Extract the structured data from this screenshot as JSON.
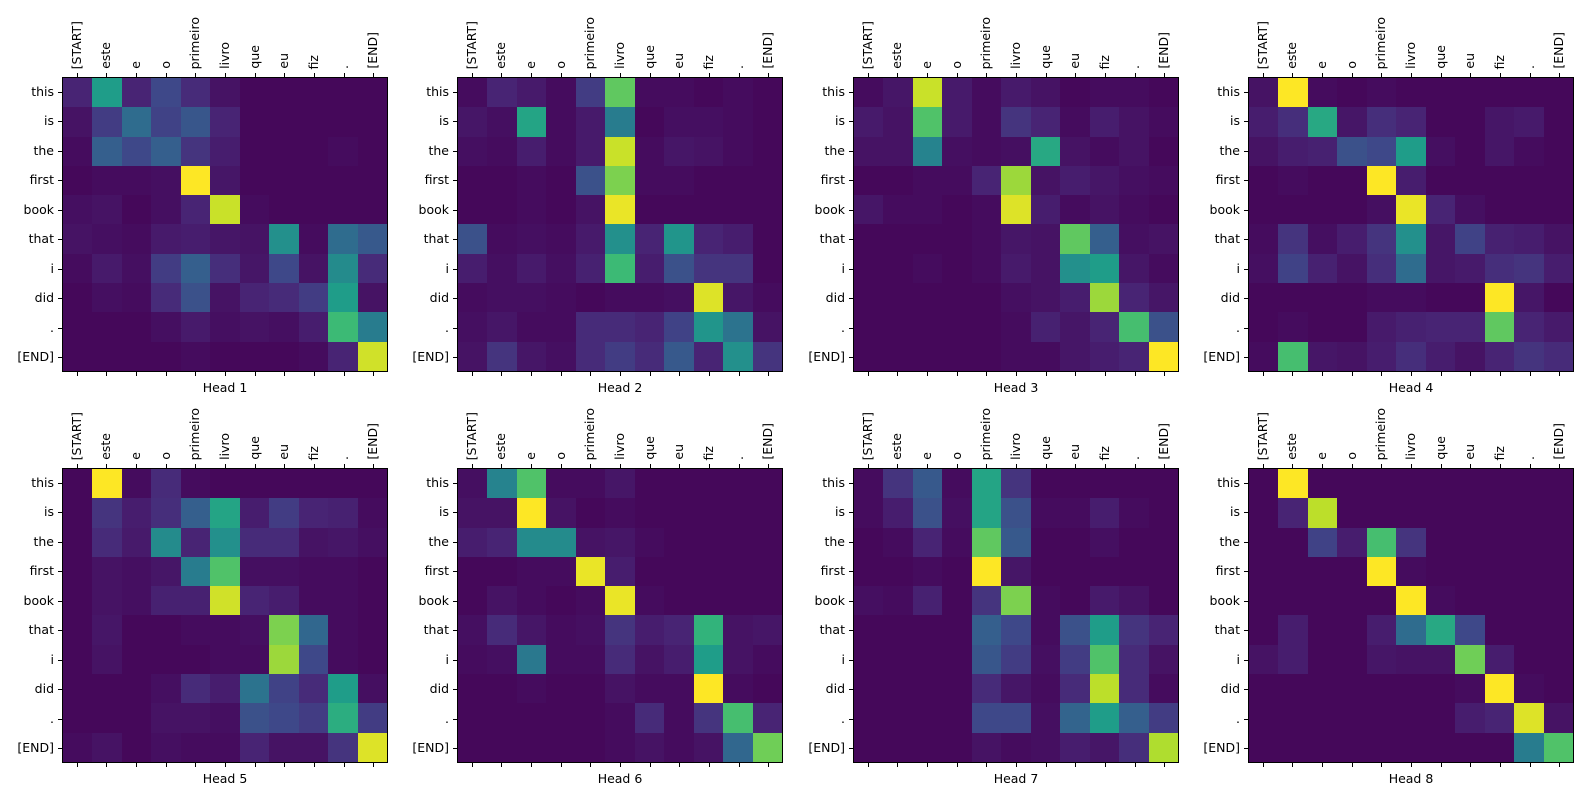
{
  "figure": {
    "background_color": "#ffffff",
    "text_color": "#000000"
  },
  "chart_data": {
    "type": "heatmap",
    "description": "Grid of 8 attention-head weight matrices (decoder tokens vs source tokens)",
    "colormap": "viridis",
    "colormap_stops": [
      "#440154",
      "#482878",
      "#3e4989",
      "#31688e",
      "#26828e",
      "#1f9e89",
      "#35b779",
      "#6ece58",
      "#b5de2b",
      "#fde725"
    ],
    "value_range": [
      0,
      1
    ],
    "grid": "off",
    "x_labels": [
      "[START]",
      "este",
      "e",
      "o",
      "primeiro",
      "livro",
      "que",
      "eu",
      "fiz",
      ".",
      "[END]"
    ],
    "y_labels": [
      "this",
      "is",
      "the",
      "first",
      "book",
      "that",
      "i",
      "did",
      ".",
      "[END]"
    ],
    "heads": [
      {
        "title": "Head 1",
        "values": [
          [
            0.1,
            0.55,
            0.1,
            0.22,
            0.12,
            0.05,
            0.02,
            0.02,
            0.02,
            0.02,
            0.02
          ],
          [
            0.05,
            0.18,
            0.35,
            0.2,
            0.27,
            0.1,
            0.02,
            0.02,
            0.02,
            0.02,
            0.02
          ],
          [
            0.03,
            0.3,
            0.22,
            0.3,
            0.15,
            0.08,
            0.02,
            0.02,
            0.02,
            0.03,
            0.02
          ],
          [
            0.02,
            0.03,
            0.03,
            0.04,
            1.0,
            0.06,
            0.02,
            0.02,
            0.02,
            0.02,
            0.02
          ],
          [
            0.04,
            0.05,
            0.02,
            0.04,
            0.1,
            0.92,
            0.03,
            0.02,
            0.02,
            0.02,
            0.02
          ],
          [
            0.05,
            0.04,
            0.03,
            0.07,
            0.08,
            0.06,
            0.05,
            0.5,
            0.03,
            0.35,
            0.28
          ],
          [
            0.03,
            0.07,
            0.04,
            0.18,
            0.3,
            0.13,
            0.06,
            0.22,
            0.05,
            0.48,
            0.12
          ],
          [
            0.02,
            0.04,
            0.03,
            0.12,
            0.25,
            0.05,
            0.1,
            0.12,
            0.18,
            0.55,
            0.05
          ],
          [
            0.02,
            0.02,
            0.02,
            0.04,
            0.07,
            0.04,
            0.05,
            0.04,
            0.08,
            0.68,
            0.42
          ],
          [
            0.02,
            0.02,
            0.02,
            0.02,
            0.03,
            0.02,
            0.02,
            0.02,
            0.03,
            0.1,
            0.93
          ]
        ]
      },
      {
        "title": "Head 2",
        "values": [
          [
            0.03,
            0.1,
            0.07,
            0.03,
            0.18,
            0.75,
            0.03,
            0.03,
            0.02,
            0.03,
            0.02
          ],
          [
            0.06,
            0.04,
            0.58,
            0.03,
            0.07,
            0.42,
            0.02,
            0.04,
            0.04,
            0.03,
            0.02
          ],
          [
            0.04,
            0.03,
            0.08,
            0.03,
            0.07,
            0.92,
            0.03,
            0.06,
            0.05,
            0.03,
            0.02
          ],
          [
            0.02,
            0.02,
            0.03,
            0.02,
            0.25,
            0.8,
            0.03,
            0.03,
            0.02,
            0.02,
            0.02
          ],
          [
            0.02,
            0.02,
            0.03,
            0.02,
            0.05,
            0.97,
            0.02,
            0.02,
            0.02,
            0.02,
            0.02
          ],
          [
            0.25,
            0.03,
            0.04,
            0.03,
            0.07,
            0.5,
            0.1,
            0.52,
            0.1,
            0.08,
            0.02
          ],
          [
            0.08,
            0.04,
            0.07,
            0.04,
            0.09,
            0.68,
            0.08,
            0.25,
            0.15,
            0.15,
            0.02
          ],
          [
            0.03,
            0.04,
            0.04,
            0.03,
            0.02,
            0.03,
            0.03,
            0.04,
            0.95,
            0.06,
            0.03
          ],
          [
            0.04,
            0.06,
            0.03,
            0.03,
            0.12,
            0.12,
            0.1,
            0.2,
            0.52,
            0.38,
            0.05
          ],
          [
            0.05,
            0.15,
            0.06,
            0.04,
            0.12,
            0.18,
            0.12,
            0.28,
            0.1,
            0.5,
            0.15
          ]
        ]
      },
      {
        "title": "Head 3",
        "values": [
          [
            0.03,
            0.06,
            0.92,
            0.07,
            0.03,
            0.07,
            0.05,
            0.02,
            0.03,
            0.03,
            0.02
          ],
          [
            0.07,
            0.05,
            0.72,
            0.07,
            0.03,
            0.15,
            0.1,
            0.03,
            0.08,
            0.05,
            0.03
          ],
          [
            0.05,
            0.05,
            0.45,
            0.04,
            0.03,
            0.04,
            0.6,
            0.05,
            0.03,
            0.05,
            0.02
          ],
          [
            0.02,
            0.02,
            0.03,
            0.03,
            0.1,
            0.85,
            0.05,
            0.08,
            0.06,
            0.04,
            0.03
          ],
          [
            0.06,
            0.03,
            0.03,
            0.02,
            0.03,
            0.95,
            0.08,
            0.03,
            0.05,
            0.03,
            0.02
          ],
          [
            0.02,
            0.02,
            0.02,
            0.02,
            0.03,
            0.06,
            0.05,
            0.75,
            0.3,
            0.04,
            0.05
          ],
          [
            0.02,
            0.02,
            0.03,
            0.02,
            0.03,
            0.07,
            0.05,
            0.5,
            0.55,
            0.06,
            0.03
          ],
          [
            0.02,
            0.02,
            0.02,
            0.02,
            0.02,
            0.04,
            0.05,
            0.08,
            0.85,
            0.1,
            0.06
          ],
          [
            0.02,
            0.02,
            0.02,
            0.02,
            0.02,
            0.03,
            0.09,
            0.06,
            0.1,
            0.7,
            0.25
          ],
          [
            0.02,
            0.02,
            0.02,
            0.02,
            0.02,
            0.03,
            0.03,
            0.06,
            0.08,
            0.1,
            1.0
          ]
        ]
      },
      {
        "title": "Head 4",
        "values": [
          [
            0.05,
            1.0,
            0.03,
            0.02,
            0.03,
            0.02,
            0.02,
            0.02,
            0.02,
            0.02,
            0.02
          ],
          [
            0.08,
            0.13,
            0.6,
            0.06,
            0.13,
            0.1,
            0.02,
            0.02,
            0.06,
            0.07,
            0.02
          ],
          [
            0.05,
            0.08,
            0.09,
            0.25,
            0.22,
            0.55,
            0.04,
            0.02,
            0.06,
            0.03,
            0.02
          ],
          [
            0.02,
            0.03,
            0.02,
            0.02,
            1.0,
            0.08,
            0.02,
            0.02,
            0.02,
            0.02,
            0.02
          ],
          [
            0.02,
            0.02,
            0.02,
            0.02,
            0.04,
            0.97,
            0.1,
            0.04,
            0.02,
            0.02,
            0.02
          ],
          [
            0.03,
            0.15,
            0.04,
            0.08,
            0.15,
            0.5,
            0.06,
            0.2,
            0.09,
            0.08,
            0.05
          ],
          [
            0.04,
            0.2,
            0.09,
            0.05,
            0.13,
            0.35,
            0.06,
            0.07,
            0.13,
            0.15,
            0.08
          ],
          [
            0.02,
            0.02,
            0.02,
            0.02,
            0.03,
            0.03,
            0.02,
            0.02,
            1.0,
            0.06,
            0.02
          ],
          [
            0.02,
            0.03,
            0.02,
            0.02,
            0.07,
            0.09,
            0.1,
            0.1,
            0.75,
            0.1,
            0.07
          ],
          [
            0.03,
            0.7,
            0.06,
            0.05,
            0.08,
            0.13,
            0.08,
            0.05,
            0.1,
            0.15,
            0.12
          ]
        ]
      },
      {
        "title": "Head 5",
        "values": [
          [
            0.02,
            1.0,
            0.03,
            0.12,
            0.03,
            0.02,
            0.02,
            0.02,
            0.02,
            0.02,
            0.02
          ],
          [
            0.02,
            0.15,
            0.08,
            0.13,
            0.3,
            0.58,
            0.08,
            0.18,
            0.1,
            0.09,
            0.03
          ],
          [
            0.02,
            0.12,
            0.07,
            0.48,
            0.1,
            0.5,
            0.12,
            0.12,
            0.05,
            0.06,
            0.04
          ],
          [
            0.02,
            0.05,
            0.04,
            0.06,
            0.42,
            0.72,
            0.04,
            0.04,
            0.03,
            0.03,
            0.02
          ],
          [
            0.02,
            0.05,
            0.04,
            0.09,
            0.09,
            0.93,
            0.1,
            0.08,
            0.03,
            0.03,
            0.02
          ],
          [
            0.02,
            0.06,
            0.02,
            0.02,
            0.03,
            0.03,
            0.04,
            0.8,
            0.33,
            0.03,
            0.02
          ],
          [
            0.02,
            0.05,
            0.02,
            0.02,
            0.02,
            0.03,
            0.03,
            0.85,
            0.22,
            0.03,
            0.02
          ],
          [
            0.02,
            0.02,
            0.02,
            0.04,
            0.12,
            0.08,
            0.38,
            0.2,
            0.12,
            0.55,
            0.04
          ],
          [
            0.02,
            0.02,
            0.02,
            0.05,
            0.05,
            0.04,
            0.25,
            0.22,
            0.18,
            0.62,
            0.18
          ],
          [
            0.03,
            0.05,
            0.02,
            0.04,
            0.03,
            0.03,
            0.1,
            0.05,
            0.05,
            0.15,
            0.95
          ]
        ]
      },
      {
        "title": "Head 6",
        "values": [
          [
            0.04,
            0.45,
            0.72,
            0.03,
            0.03,
            0.06,
            0.02,
            0.02,
            0.02,
            0.02,
            0.02
          ],
          [
            0.05,
            0.05,
            1.0,
            0.05,
            0.02,
            0.03,
            0.02,
            0.02,
            0.02,
            0.02,
            0.02
          ],
          [
            0.08,
            0.1,
            0.48,
            0.48,
            0.05,
            0.06,
            0.03,
            0.02,
            0.02,
            0.02,
            0.02
          ],
          [
            0.02,
            0.02,
            0.03,
            0.03,
            0.97,
            0.08,
            0.02,
            0.02,
            0.02,
            0.02,
            0.02
          ],
          [
            0.02,
            0.05,
            0.03,
            0.02,
            0.03,
            0.97,
            0.03,
            0.02,
            0.02,
            0.02,
            0.02
          ],
          [
            0.04,
            0.12,
            0.06,
            0.03,
            0.04,
            0.15,
            0.08,
            0.1,
            0.65,
            0.05,
            0.06
          ],
          [
            0.03,
            0.04,
            0.4,
            0.03,
            0.03,
            0.12,
            0.05,
            0.08,
            0.55,
            0.05,
            0.03
          ],
          [
            0.02,
            0.02,
            0.03,
            0.02,
            0.02,
            0.05,
            0.03,
            0.03,
            1.0,
            0.03,
            0.02
          ],
          [
            0.02,
            0.02,
            0.02,
            0.02,
            0.02,
            0.03,
            0.12,
            0.03,
            0.15,
            0.7,
            0.1
          ],
          [
            0.02,
            0.02,
            0.02,
            0.02,
            0.02,
            0.03,
            0.05,
            0.03,
            0.05,
            0.33,
            0.78
          ]
        ]
      },
      {
        "title": "Head 7",
        "values": [
          [
            0.03,
            0.15,
            0.28,
            0.03,
            0.58,
            0.15,
            0.02,
            0.02,
            0.02,
            0.02,
            0.02
          ],
          [
            0.03,
            0.08,
            0.25,
            0.04,
            0.58,
            0.25,
            0.03,
            0.03,
            0.08,
            0.03,
            0.02
          ],
          [
            0.02,
            0.03,
            0.1,
            0.03,
            0.75,
            0.28,
            0.02,
            0.02,
            0.04,
            0.02,
            0.02
          ],
          [
            0.02,
            0.02,
            0.03,
            0.02,
            1.0,
            0.06,
            0.02,
            0.02,
            0.02,
            0.02,
            0.02
          ],
          [
            0.04,
            0.03,
            0.09,
            0.02,
            0.15,
            0.8,
            0.03,
            0.02,
            0.07,
            0.05,
            0.02
          ],
          [
            0.02,
            0.02,
            0.02,
            0.02,
            0.3,
            0.22,
            0.03,
            0.25,
            0.55,
            0.15,
            0.1
          ],
          [
            0.02,
            0.02,
            0.02,
            0.02,
            0.27,
            0.18,
            0.04,
            0.18,
            0.72,
            0.12,
            0.05
          ],
          [
            0.02,
            0.02,
            0.02,
            0.02,
            0.12,
            0.06,
            0.03,
            0.12,
            0.9,
            0.12,
            0.03
          ],
          [
            0.02,
            0.02,
            0.02,
            0.02,
            0.22,
            0.22,
            0.04,
            0.32,
            0.55,
            0.3,
            0.18
          ],
          [
            0.02,
            0.02,
            0.02,
            0.02,
            0.05,
            0.03,
            0.04,
            0.08,
            0.06,
            0.13,
            0.88
          ]
        ]
      },
      {
        "title": "Head 8",
        "values": [
          [
            0.02,
            1.0,
            0.02,
            0.02,
            0.02,
            0.02,
            0.02,
            0.02,
            0.02,
            0.02,
            0.02
          ],
          [
            0.02,
            0.1,
            0.9,
            0.02,
            0.02,
            0.02,
            0.02,
            0.02,
            0.02,
            0.02,
            0.02
          ],
          [
            0.02,
            0.02,
            0.2,
            0.08,
            0.7,
            0.15,
            0.02,
            0.02,
            0.02,
            0.02,
            0.02
          ],
          [
            0.02,
            0.02,
            0.02,
            0.02,
            1.0,
            0.03,
            0.02,
            0.02,
            0.02,
            0.02,
            0.02
          ],
          [
            0.02,
            0.02,
            0.02,
            0.02,
            0.02,
            1.0,
            0.03,
            0.02,
            0.02,
            0.02,
            0.02
          ],
          [
            0.02,
            0.08,
            0.02,
            0.02,
            0.08,
            0.35,
            0.6,
            0.22,
            0.02,
            0.02,
            0.02
          ],
          [
            0.05,
            0.08,
            0.02,
            0.02,
            0.06,
            0.05,
            0.05,
            0.78,
            0.08,
            0.02,
            0.02
          ],
          [
            0.02,
            0.02,
            0.02,
            0.02,
            0.02,
            0.02,
            0.02,
            0.03,
            1.0,
            0.03,
            0.02
          ],
          [
            0.02,
            0.02,
            0.02,
            0.02,
            0.02,
            0.02,
            0.02,
            0.08,
            0.1,
            0.95,
            0.05
          ],
          [
            0.02,
            0.02,
            0.02,
            0.02,
            0.02,
            0.02,
            0.02,
            0.02,
            0.02,
            0.42,
            0.72
          ]
        ]
      }
    ]
  }
}
